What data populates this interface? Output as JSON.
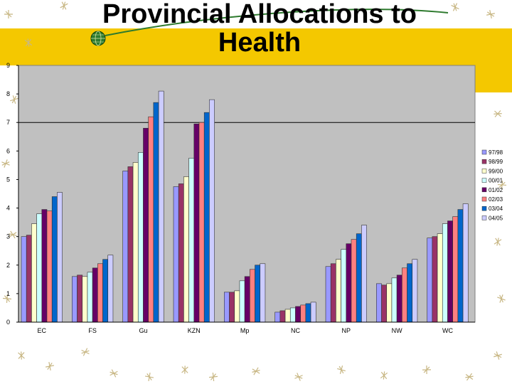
{
  "slide": {
    "title": "Provincial Allocations to\nHealth",
    "colors": {
      "accent": "#f4c800",
      "plot_background": "#c0c0c0",
      "doodle": "#c8b784"
    }
  },
  "chart_data": {
    "type": "bar",
    "title": "",
    "xlabel": "",
    "ylabel": "",
    "ylim": [
      0,
      9
    ],
    "yticks": [
      0,
      1,
      2,
      3,
      4,
      5,
      6,
      7,
      8,
      9
    ],
    "grid": "single horizontal line at 7",
    "legend_position": "right",
    "categories": [
      "EC",
      "FS",
      "Gu",
      "KZN",
      "Mp",
      "NC",
      "NP",
      "NW",
      "WC"
    ],
    "series": [
      {
        "name": "97/98",
        "color": "#9999ff",
        "values": [
          3.0,
          1.6,
          5.3,
          4.75,
          1.05,
          0.35,
          1.95,
          1.35,
          2.95
        ]
      },
      {
        "name": "98/99",
        "color": "#993366",
        "values": [
          3.05,
          1.65,
          5.45,
          4.85,
          1.05,
          0.4,
          2.05,
          1.3,
          3.0
        ]
      },
      {
        "name": "99/00",
        "color": "#ffffcc",
        "values": [
          3.45,
          1.6,
          5.6,
          5.1,
          1.1,
          0.45,
          2.2,
          1.35,
          3.1
        ]
      },
      {
        "name": "00/01",
        "color": "#ccffff",
        "values": [
          3.8,
          1.75,
          5.95,
          5.75,
          1.45,
          0.5,
          2.55,
          1.55,
          3.45
        ]
      },
      {
        "name": "01/02",
        "color": "#660066",
        "values": [
          3.95,
          1.9,
          6.8,
          6.95,
          1.6,
          0.55,
          2.75,
          1.65,
          3.55
        ]
      },
      {
        "name": "02/03",
        "color": "#ff8080",
        "values": [
          3.9,
          2.05,
          7.2,
          7.0,
          1.85,
          0.6,
          2.9,
          1.9,
          3.7
        ]
      },
      {
        "name": "03/04",
        "color": "#0066cc",
        "values": [
          4.4,
          2.2,
          7.7,
          7.35,
          2.0,
          0.65,
          3.1,
          2.05,
          3.95
        ]
      },
      {
        "name": "04/05",
        "color": "#ccccff",
        "values": [
          4.55,
          2.35,
          8.1,
          7.8,
          2.05,
          0.7,
          3.4,
          2.2,
          4.15
        ]
      }
    ]
  }
}
